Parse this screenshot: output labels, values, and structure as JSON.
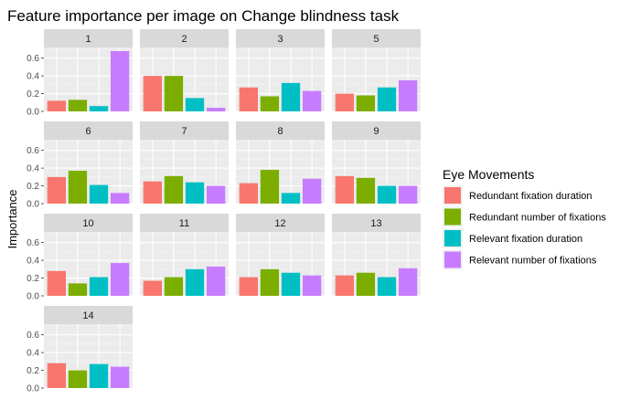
{
  "chart_data": {
    "type": "bar",
    "title": "Feature importance per image on Change blindness task",
    "xlabel": "",
    "ylabel": "Importance",
    "ylim": [
      0,
      0.72
    ],
    "yticks": [
      0.0,
      0.2,
      0.4,
      0.6
    ],
    "ytick_labels": [
      "0.0",
      "0.2",
      "0.4",
      "0.6"
    ],
    "grid": true,
    "legend": {
      "title": "Eye Movements",
      "position": "right"
    },
    "series": [
      {
        "name": "Redundant fixation duration",
        "color": "#F8766D"
      },
      {
        "name": "Redundant number of fixations",
        "color": "#7CAE00"
      },
      {
        "name": "Relevant  fixation duration",
        "color": "#00BFC4"
      },
      {
        "name": "Relevant  number of fixations",
        "color": "#C77CFF"
      }
    ],
    "facets": [
      {
        "label": "1",
        "values": [
          0.12,
          0.13,
          0.06,
          0.68
        ]
      },
      {
        "label": "2",
        "values": [
          0.4,
          0.4,
          0.15,
          0.04
        ]
      },
      {
        "label": "3",
        "values": [
          0.27,
          0.17,
          0.32,
          0.23
        ]
      },
      {
        "label": "5",
        "values": [
          0.2,
          0.18,
          0.27,
          0.35
        ]
      },
      {
        "label": "6",
        "values": [
          0.3,
          0.37,
          0.21,
          0.12
        ]
      },
      {
        "label": "7",
        "values": [
          0.25,
          0.31,
          0.24,
          0.2
        ]
      },
      {
        "label": "8",
        "values": [
          0.23,
          0.38,
          0.12,
          0.28
        ]
      },
      {
        "label": "9",
        "values": [
          0.31,
          0.29,
          0.2,
          0.2
        ]
      },
      {
        "label": "10",
        "values": [
          0.28,
          0.14,
          0.21,
          0.37
        ]
      },
      {
        "label": "11",
        "values": [
          0.17,
          0.21,
          0.3,
          0.33
        ]
      },
      {
        "label": "12",
        "values": [
          0.21,
          0.3,
          0.26,
          0.23
        ]
      },
      {
        "label": "13",
        "values": [
          0.23,
          0.26,
          0.21,
          0.31
        ]
      },
      {
        "label": "14",
        "values": [
          0.28,
          0.2,
          0.27,
          0.24
        ]
      }
    ],
    "layout": {
      "columns": 4
    }
  }
}
